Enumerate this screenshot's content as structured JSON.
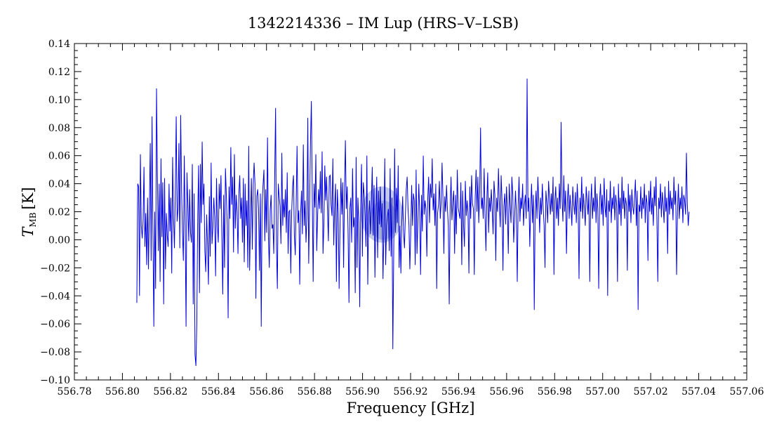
{
  "chart_data": {
    "type": "line",
    "title": "1342214336 – IM Lup (HRS–V–LSB)",
    "xlabel": "Frequency [GHz]",
    "ylabel_main": "T",
    "ylabel_sub": "MB",
    "ylabel_unit": "[K]",
    "xlim": [
      556.78,
      557.06
    ],
    "ylim": [
      -0.1,
      0.14
    ],
    "x_ticks": [
      "556.78",
      "556.80",
      "556.82",
      "556.84",
      "556.86",
      "556.88",
      "556.90",
      "556.92",
      "556.94",
      "556.96",
      "556.98",
      "557.00",
      "557.02",
      "557.04",
      "557.06"
    ],
    "y_ticks": [
      "−0.10",
      "−0.08",
      "−0.06",
      "−0.04",
      "−0.02",
      "0.00",
      "0.02",
      "0.04",
      "0.06",
      "0.08",
      "0.10",
      "0.12",
      "0.14"
    ],
    "grid": false,
    "series": [
      {
        "color": "#0000dd",
        "x_start": 556.806,
        "x_end": 557.036,
        "values": [
          -0.045,
          0.04,
          0.038,
          -0.04,
          0.061,
          0.01,
          0.001,
          0.014,
          0.052,
          -0.005,
          0.019,
          -0.018,
          0.03,
          -0.021,
          0.022,
          0.069,
          -0.015,
          0.088,
          0.005,
          -0.062,
          0.02,
          -0.035,
          0.108,
          0.045,
          -0.008,
          0.04,
          -0.03,
          0.058,
          0.002,
          0.041,
          -0.046,
          0.044,
          -0.021,
          0.019,
          0.003,
          -0.005,
          0.04,
          0.006,
          0.03,
          -0.024,
          0.059,
          0.016,
          -0.006,
          0.035,
          0.088,
          0.013,
          0.022,
          0.069,
          -0.006,
          0.089,
          0.035,
          0.005,
          -0.015,
          0.06,
          0.012,
          -0.062,
          0.048,
          0.025,
          -0.001,
          0.036,
          0.005,
          -0.002,
          0.054,
          -0.046,
          0.033,
          -0.082,
          -0.09,
          -0.06,
          0.015,
          0.053,
          -0.038,
          0.054,
          0.012,
          0.07,
          0.025,
          0.04,
          -0.008,
          -0.023,
          0.018,
          -0.003,
          -0.032,
          0.031,
          -0.012,
          0.055,
          -0.003,
          0.009,
          0.03,
          0.016,
          -0.026,
          0.044,
          0.011,
          -0.002,
          0.04,
          0.022,
          0.046,
          0.002,
          -0.039,
          0.032,
          -0.02,
          0.051,
          0.032,
          0.01,
          -0.056,
          0.038,
          0.015,
          0.066,
          0.025,
          0.045,
          -0.009,
          0.061,
          0.008,
          0.032,
          0.02,
          -0.01,
          0.033,
          0.046,
          0.015,
          0.03,
          -0.002,
          0.044,
          -0.016,
          0.04,
          0.01,
          0.028,
          -0.02,
          0.067,
          -0.022,
          0.015,
          0.044,
          -0.007,
          0.039,
          0.055,
          0.04,
          -0.042,
          0.031,
          0.036,
          0.022,
          -0.022,
          0.033,
          -0.062,
          0.028,
          0.039,
          0.05,
          -0.001,
          0.036,
          0.005,
          0.073,
          0.002,
          -0.02,
          0.021,
          0.032,
          0.008,
          0.011,
          -0.01,
          0.043,
          0.094,
          -0.005,
          -0.035,
          0.04,
          0.031,
          0.024,
          -0.003,
          0.062,
          0.01,
          0.029,
          0.016,
          0.036,
          0.005,
          0.048,
          -0.01,
          0.02,
          0.021,
          -0.024,
          0.02,
          0.038,
          0.046,
          0.003,
          -0.011,
          0.025,
          0.067,
          0.012,
          0.021,
          -0.032,
          0.019,
          0.035,
          0.004,
          0.068,
          0.01,
          0.028,
          -0.002,
          0.016,
          0.087,
          -0.017,
          0.023,
          0.07,
          0.099,
          0.03,
          -0.03,
          0.04,
          0.023,
          0.061,
          -0.008,
          0.018,
          0.036,
          0.022,
          0.049,
          0.019,
          0.063,
          -0.01,
          0.011,
          0.053,
          0.028,
          0.045,
          0.021,
          -0.001,
          0.045,
          0.046,
          0.025,
          0.017,
          0.058,
          -0.004,
          0.023,
          0.04,
          -0.03,
          0.036,
          0.019,
          -0.035,
          0.009,
          0.044,
          0.018,
          0.041,
          -0.02,
          0.035,
          0.071,
          0.022,
          0.038,
          0.005,
          -0.045,
          0.022,
          0.03,
          -0.002,
          0.051,
          0.009,
          0.016,
          -0.038,
          0.059,
          -0.02,
          0.03,
          0.012,
          -0.048,
          0.021,
          0.054,
          -0.012,
          0.041,
          0.032,
          0.017,
          -0.005,
          0.06,
          -0.032,
          0.018,
          0.028,
          0.004,
          0.026,
          0.052,
          0.003,
          0.039,
          -0.027,
          0.017,
          0.045,
          -0.013,
          0.035,
          0.011,
          0.038,
          0.009,
          0.026,
          -0.028,
          0.006,
          0.058,
          -0.018,
          0.01,
          0.017,
          0.022,
          -0.008,
          0.051,
          -0.012,
          0.03,
          -0.078,
          -0.01,
          0.065,
          0.005,
          0.037,
          0.012,
          0.053,
          -0.02,
          0.01,
          -0.024,
          0.013,
          0.031,
          0.005,
          -0.006,
          0.017,
          0.036,
          0.045,
          0.022,
          0.011,
          -0.021,
          0.005,
          0.039,
          0.01,
          0.033,
          0.028,
          -0.018,
          0.05,
          -0.01,
          0.012,
          0.04,
          0.02,
          -0.025,
          0.032,
          0.006,
          0.06,
          0.018,
          0.028,
          0.022,
          -0.012,
          0.029,
          0.045,
          0.012,
          0.04,
          0.03,
          0.058,
          0.021,
          0.033,
          0.01,
          0.04,
          -0.035,
          0.019,
          0.025,
          0.042,
          0.015,
          0.027,
          0.055,
          0.03,
          -0.01,
          0.031,
          0.02,
          0.039,
          0.022,
          0.01,
          -0.046,
          0.021,
          0.045,
          0.014,
          0.027,
          0.035,
          -0.01,
          0.032,
          0.004,
          0.05,
          0.023,
          0.019,
          0.015,
          0.041,
          -0.018,
          0.035,
          0.01,
          -0.005,
          0.042,
          0.017,
          0.028,
          0.019,
          -0.024,
          0.038,
          0.015,
          0.046,
          0.026,
          0.022,
          -0.025,
          0.03,
          0.05,
          0.02,
          0.045,
          0.012,
          0.034,
          0.08,
          0.022,
          0.03,
          0.015,
          0.051,
          0.018,
          -0.008,
          0.028,
          0.048,
          0.005,
          0.03,
          0.02,
          0.036,
          0.022,
          0.004,
          0.042,
          0.032,
          -0.015,
          0.03,
          0.02,
          0.051,
          0.026,
          0.009,
          0.046,
          0.028,
          -0.022,
          0.024,
          0.033,
          0.011,
          0.038,
          0.02,
          -0.01,
          0.04,
          0.025,
          0.012,
          0.045,
          0.032,
          -0.002,
          0.015,
          0.035,
          0.02,
          -0.03,
          0.025,
          0.045,
          0.013,
          0.03,
          0.022,
          0.04,
          0.01,
          0.025,
          0.032,
          0.015,
          0.115,
          0.02,
          0.03,
          -0.005,
          0.022,
          0.04,
          0.012,
          0.032,
          -0.05,
          0.02,
          0.035,
          0.015,
          0.045,
          0.028,
          0.005,
          0.03,
          0.018,
          0.04,
          0.022,
          0.01,
          -0.02,
          0.035,
          0.026,
          0.012,
          0.042,
          0.03,
          0.018,
          0.033,
          0.02,
          0.045,
          -0.025,
          0.028,
          0.038,
          0.015,
          0.03,
          0.01,
          0.04,
          0.022,
          0.084,
          0.03,
          0.013,
          0.046,
          0.02,
          0.035,
          -0.01,
          0.028,
          0.04,
          0.015,
          0.032,
          0.022,
          0.01,
          0.038,
          0.026,
          0.018,
          0.034,
          0.012,
          0.04,
          0.025,
          -0.028,
          0.03,
          0.02,
          0.045,
          0.015,
          0.033,
          0.022,
          0.01,
          0.038,
          0.028,
          0.018,
          0.035,
          -0.03,
          0.025,
          0.04,
          0.015,
          0.03,
          0.02,
          0.045,
          0.012,
          0.033,
          0.022,
          -0.035,
          0.028,
          0.04,
          0.018,
          0.032,
          0.01,
          0.044,
          0.024,
          0.016,
          0.036,
          -0.04,
          0.028,
          0.02,
          0.042,
          0.012,
          0.03,
          0.022,
          0.038,
          0.014,
          0.032,
          0.025,
          -0.03,
          0.04,
          0.018,
          0.03,
          0.01,
          0.045,
          0.022,
          0.035,
          0.015,
          0.03,
          0.025,
          -0.022,
          0.04,
          0.02,
          0.032,
          0.012,
          0.036,
          0.024,
          0.018,
          0.03,
          0.043,
          0.01,
          0.035,
          -0.05,
          0.025,
          0.02,
          0.038,
          0.015,
          0.03,
          0.022,
          0.04,
          0.012,
          0.032,
          0.026,
          -0.015,
          0.035,
          0.02,
          0.042,
          0.018,
          0.03,
          0.01,
          0.038,
          0.024,
          0.045,
          0.015,
          -0.03,
          0.03,
          0.022,
          0.04,
          0.016,
          0.034,
          0.025,
          0.012,
          0.038,
          0.02,
          0.03,
          -0.01,
          0.042,
          0.018,
          0.035,
          0.022,
          0.03,
          0.014,
          0.045,
          0.025,
          0.035,
          -0.025,
          0.02,
          0.04,
          0.015,
          0.03,
          0.022,
          0.038,
          0.012,
          0.032,
          0.028,
          0.018,
          0.062,
          0.025,
          0.01,
          0.02
        ]
      }
    ],
    "highlight": {
      "x": 556.908,
      "y": 0.018,
      "color": "#3a55a8"
    }
  }
}
